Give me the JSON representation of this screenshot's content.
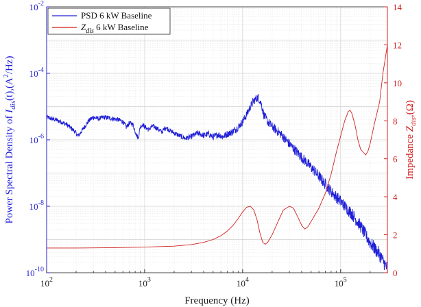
{
  "chart_data": {
    "type": "line",
    "xscale": "log",
    "xlim": [
      100,
      300000
    ],
    "xlabel": "Frequency (Hz)",
    "x_ticks": [
      {
        "value": 100,
        "base": "10",
        "exp": "2"
      },
      {
        "value": 1000,
        "base": "10",
        "exp": "3"
      },
      {
        "value": 10000,
        "base": "10",
        "exp": "4"
      },
      {
        "value": 100000,
        "base": "10",
        "exp": "5"
      }
    ],
    "left_axis": {
      "scale": "log",
      "ylim": [
        1e-10,
        0.01
      ],
      "label": "Power Spectral Density of I_dis(t), (A^2/Hz)",
      "label_prefix": "Power Spectral Density of ",
      "label_var": "I",
      "label_sub": "dis",
      "label_mid": "(t),(A",
      "label_sup": "2",
      "label_suffix": "/Hz)",
      "color": "#1f1fd6",
      "ticks": [
        {
          "value": 1e-10,
          "base": "10",
          "exp": "-10"
        },
        {
          "value": 1e-08,
          "base": "10",
          "exp": "-8"
        },
        {
          "value": 1e-06,
          "base": "10",
          "exp": "-6"
        },
        {
          "value": 0.0001,
          "base": "10",
          "exp": "-4"
        },
        {
          "value": 0.01,
          "base": "10",
          "exp": "-2"
        }
      ]
    },
    "right_axis": {
      "scale": "linear",
      "ylim": [
        0,
        14
      ],
      "label": "Impedance Z_dis, (Ω)",
      "label_prefix": "Impedance ",
      "label_var": "Z",
      "label_sub": "dis",
      "label_suffix": ",(Ω)",
      "color": "#d11f1f",
      "ticks": [
        "0",
        "2",
        "4",
        "6",
        "8",
        "10",
        "12",
        "14"
      ]
    },
    "legend": {
      "position": "top-left",
      "entries": [
        {
          "text": "PSD 6 kW Baseline",
          "color": "#1f1fd6"
        },
        {
          "var": "Z",
          "sub": "dis",
          "text": " 6 kW Baseline",
          "color": "#d11f1f"
        }
      ]
    },
    "series": [
      {
        "name": "PSD 6 kW Baseline",
        "axis": "left",
        "color": "#1f1fd6",
        "noise": 0.18,
        "x": [
          100,
          130,
          160,
          190,
          210,
          240,
          270,
          300,
          340,
          380,
          420,
          480,
          540,
          600,
          650,
          700,
          760,
          800,
          860,
          900,
          950,
          1000,
          1100,
          1200,
          1350,
          1500,
          1650,
          1800,
          2000,
          2300,
          2600,
          3000,
          3500,
          4000,
          4500,
          5000,
          5600,
          6300,
          7000,
          8000,
          9000,
          10000,
          11000,
          12000,
          13000,
          14000,
          14500,
          15500,
          16500,
          18000,
          20000,
          25000,
          30000,
          40000,
          50000,
          60000,
          70000,
          80000,
          100000,
          130000,
          160000,
          200000,
          250000,
          300000
        ],
        "y": [
          4.8e-06,
          3.8e-06,
          2.9e-06,
          1.9e-06,
          1.3e-06,
          2.3e-06,
          3.8e-06,
          4.8e-06,
          4.3e-06,
          4.8e-06,
          4.6e-06,
          4.3e-06,
          4e-06,
          3.5e-06,
          2.4e-06,
          3.2e-06,
          2.9e-06,
          1.8e-06,
          1.1e-06,
          2.4e-06,
          2.9e-06,
          2.5e-06,
          2e-06,
          2.6e-06,
          2.2e-06,
          1.7e-06,
          2.4e-06,
          1.9e-06,
          1.6e-06,
          1.3e-06,
          1.1e-06,
          1.25e-06,
          1.6e-06,
          1.35e-06,
          1.5e-06,
          1.2e-06,
          1.45e-06,
          1.25e-06,
          1.5e-06,
          1.8e-06,
          2.4e-06,
          3.5e-06,
          5.8e-06,
          1e-05,
          1.5e-05,
          1.8e-05,
          1.9e-05,
          1.2e-05,
          5.5e-06,
          3.5e-06,
          2.5e-06,
          1.4e-06,
          7.5e-07,
          3e-07,
          1.5e-07,
          8e-08,
          4.5e-08,
          2.8e-08,
          1.4e-08,
          6e-09,
          2.5e-09,
          8e-10,
          3.5e-10,
          1.3e-10
        ]
      },
      {
        "name": "Z_dis 6 kW Baseline",
        "axis": "right",
        "color": "#d11f1f",
        "x": [
          100,
          200,
          500,
          1000,
          2000,
          3000,
          4000,
          5000,
          6000,
          7000,
          8000,
          9000,
          10000,
          11000,
          12000,
          13000,
          14000,
          15000,
          16000,
          17000,
          18000,
          20000,
          23000,
          26000,
          30000,
          33000,
          36000,
          40000,
          43000,
          46000,
          50000,
          60000,
          70000,
          80000,
          90000,
          100000,
          110000,
          120000,
          125000,
          130000,
          140000,
          150000,
          160000,
          170000,
          180000,
          190000,
          200000,
          220000,
          250000,
          270000,
          300000
        ],
        "y": [
          1.3,
          1.3,
          1.32,
          1.35,
          1.4,
          1.48,
          1.6,
          1.75,
          1.95,
          2.2,
          2.5,
          2.85,
          3.2,
          3.45,
          3.5,
          3.3,
          2.8,
          2.1,
          1.6,
          1.5,
          1.6,
          2.0,
          2.7,
          3.3,
          3.5,
          3.4,
          3.0,
          2.5,
          2.3,
          2.4,
          2.7,
          3.4,
          4.2,
          5.2,
          6.3,
          7.2,
          8.0,
          8.5,
          8.55,
          8.4,
          7.8,
          7.0,
          6.5,
          6.35,
          6.2,
          6.4,
          6.8,
          7.8,
          9.0,
          10.5,
          12.0
        ]
      }
    ]
  }
}
